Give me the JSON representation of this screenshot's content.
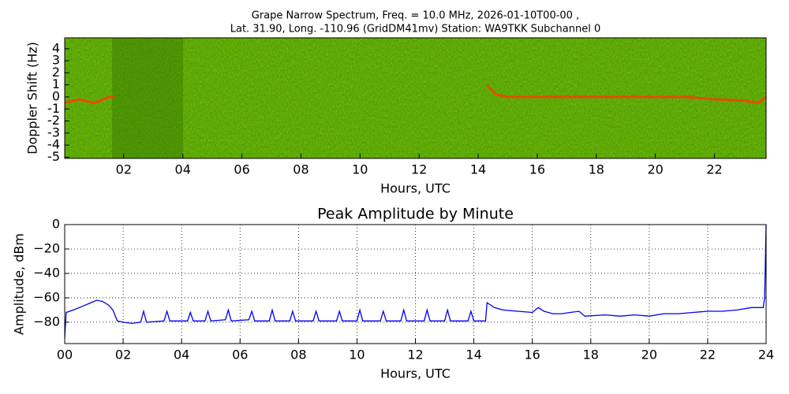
{
  "chart_data": [
    {
      "type": "spectrogram",
      "title": "Grape Narrow Spectrum, Freq. = 10.0 MHz, 2026-01-10T00-00 ,",
      "subtitle": "Lat.  31.90, Long. -110.96 (GridDM41mv) Station: WA9TKK Subchannel 0",
      "xlabel": "Hours, UTC",
      "ylabel": "Doppler Shift (Hz)",
      "xlim": [
        0,
        23.75
      ],
      "ylim": [
        -5.1,
        4.9
      ],
      "xticks": [
        {
          "value": 2,
          "label": "02"
        },
        {
          "value": 4,
          "label": "04"
        },
        {
          "value": 6,
          "label": "06"
        },
        {
          "value": 8,
          "label": "08"
        },
        {
          "value": 10,
          "label": "10"
        },
        {
          "value": 12,
          "label": "12"
        },
        {
          "value": 14,
          "label": "14"
        },
        {
          "value": 16,
          "label": "16"
        },
        {
          "value": 18,
          "label": "18"
        },
        {
          "value": 20,
          "label": "20"
        },
        {
          "value": 22,
          "label": "22"
        }
      ],
      "yticks": [
        -5,
        -4,
        -3,
        -2,
        -1,
        0,
        1,
        2,
        3,
        4
      ],
      "grid": false,
      "color": "#ff3b00",
      "x": [
        0,
        0.5,
        1,
        1.5,
        1.7,
        null,
        14.3,
        14.6,
        15,
        16,
        18,
        20,
        21,
        22,
        23,
        23.5,
        23.75
      ],
      "values": [
        -0.5,
        -0.2,
        -0.5,
        0,
        0,
        null,
        1.0,
        0.2,
        0,
        0,
        0,
        0,
        0,
        -0.2,
        -0.3,
        -0.5,
        0
      ]
    },
    {
      "type": "line",
      "title": "Peak Amplitude by Minute",
      "xlabel": "Hours, UTC",
      "ylabel": "Amplitude, dBm",
      "xlim": [
        0,
        24
      ],
      "ylim": [
        -97.5,
        0
      ],
      "xticks": [
        {
          "value": 0,
          "label": "00"
        },
        {
          "value": 2,
          "label": "02"
        },
        {
          "value": 4,
          "label": "04"
        },
        {
          "value": 6,
          "label": "06"
        },
        {
          "value": 8,
          "label": "08"
        },
        {
          "value": 10,
          "label": "10"
        },
        {
          "value": 12,
          "label": "12"
        },
        {
          "value": 14,
          "label": "14"
        },
        {
          "value": 16,
          "label": "16"
        },
        {
          "value": 18,
          "label": "18"
        },
        {
          "value": 20,
          "label": "20"
        },
        {
          "value": 22,
          "label": "22"
        },
        {
          "value": 24,
          "label": "24"
        }
      ],
      "yticks": [
        0,
        {
          "value": -20,
          "label": "−20"
        },
        {
          "value": -40,
          "label": "−40"
        },
        {
          "value": -60,
          "label": "−60"
        },
        {
          "value": -80,
          "label": "−80"
        }
      ],
      "grid": true,
      "color": "#0000ee",
      "x": [
        0,
        0.05,
        0.3,
        0.6,
        0.9,
        1.1,
        1.3,
        1.5,
        1.65,
        1.8,
        2.0,
        2.3,
        2.6,
        2.7,
        2.8,
        3.4,
        3.5,
        3.6,
        4.2,
        4.3,
        4.4,
        4.8,
        4.9,
        5.0,
        5.5,
        5.6,
        5.7,
        6.3,
        6.4,
        6.5,
        7.0,
        7.1,
        7.2,
        7.7,
        7.8,
        7.9,
        8.5,
        8.6,
        8.7,
        9.3,
        9.4,
        9.5,
        10.0,
        10.1,
        10.2,
        10.8,
        10.9,
        11.0,
        11.5,
        11.6,
        11.7,
        12.3,
        12.4,
        12.5,
        13.0,
        13.1,
        13.2,
        13.8,
        13.9,
        14.0,
        14.4,
        14.45,
        14.7,
        15.0,
        15.5,
        16.0,
        16.2,
        16.4,
        16.7,
        17.0,
        17.3,
        17.6,
        17.8,
        18.5,
        19.0,
        19.5,
        20.0,
        20.5,
        21.0,
        21.5,
        22.0,
        22.5,
        23.0,
        23.5,
        23.9,
        23.95,
        24
      ],
      "values": [
        -93,
        -72,
        -70,
        -67,
        -64,
        -62,
        -63,
        -66,
        -70,
        -79,
        -80,
        -81,
        -80,
        -71,
        -80,
        -79,
        -71,
        -79,
        -79,
        -72,
        -79,
        -79,
        -71,
        -79,
        -78,
        -70,
        -79,
        -78,
        -71,
        -79,
        -79,
        -70,
        -79,
        -79,
        -71,
        -79,
        -79,
        -71,
        -79,
        -79,
        -71,
        -79,
        -79,
        -70,
        -79,
        -79,
        -71,
        -79,
        -79,
        -70,
        -79,
        -79,
        -70,
        -79,
        -79,
        -70,
        -79,
        -79,
        -71,
        -79,
        -79,
        -64,
        -68,
        -70,
        -71,
        -72,
        -68,
        -71,
        -73,
        -73,
        -72,
        -71,
        -75,
        -74,
        -75,
        -74,
        -75,
        -73,
        -73,
        -72,
        -71,
        -71,
        -70,
        -68,
        -68,
        -60,
        0
      ]
    }
  ]
}
